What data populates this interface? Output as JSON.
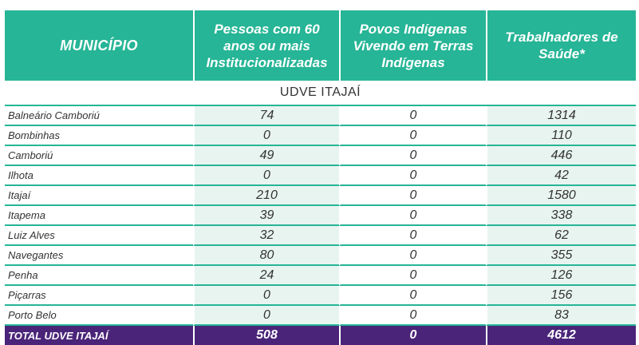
{
  "table": {
    "headers": [
      "MUNICÍPIO",
      "Pessoas com 60 anos ou mais Institucionalizadas",
      "Povos Indígenas Vivendo em Terras Indígenas",
      "Trabalhadores de Saúde*"
    ],
    "section_title": "UDVE ITAJAÍ",
    "rows": [
      {
        "municipio": "Balneário Camboriú",
        "pessoas60": "74",
        "indigenas": "0",
        "trabalhadores": "1314"
      },
      {
        "municipio": "Bombinhas",
        "pessoas60": "0",
        "indigenas": "0",
        "trabalhadores": "110"
      },
      {
        "municipio": "Camboriú",
        "pessoas60": "49",
        "indigenas": "0",
        "trabalhadores": "446"
      },
      {
        "municipio": "Ilhota",
        "pessoas60": "0",
        "indigenas": "0",
        "trabalhadores": "42"
      },
      {
        "municipio": "Itajaí",
        "pessoas60": "210",
        "indigenas": "0",
        "trabalhadores": "1580"
      },
      {
        "municipio": "Itapema",
        "pessoas60": "39",
        "indigenas": "0",
        "trabalhadores": "338"
      },
      {
        "municipio": "Luiz Alves",
        "pessoas60": "32",
        "indigenas": "0",
        "trabalhadores": "62"
      },
      {
        "municipio": "Navegantes",
        "pessoas60": "80",
        "indigenas": "0",
        "trabalhadores": "355"
      },
      {
        "municipio": "Penha",
        "pessoas60": "24",
        "indigenas": "0",
        "trabalhadores": "126"
      },
      {
        "municipio": "Piçarras",
        "pessoas60": "0",
        "indigenas": "0",
        "trabalhadores": "156"
      },
      {
        "municipio": "Porto Belo",
        "pessoas60": "0",
        "indigenas": "0",
        "trabalhadores": "83"
      }
    ],
    "total": {
      "municipio": "TOTAL UDVE ITAJAÍ",
      "pessoas60": "508",
      "indigenas": "0",
      "trabalhadores": "4612"
    }
  },
  "colors": {
    "header": "#26b596",
    "total_row": "#4a2479",
    "shade": "#e8f4f0"
  }
}
